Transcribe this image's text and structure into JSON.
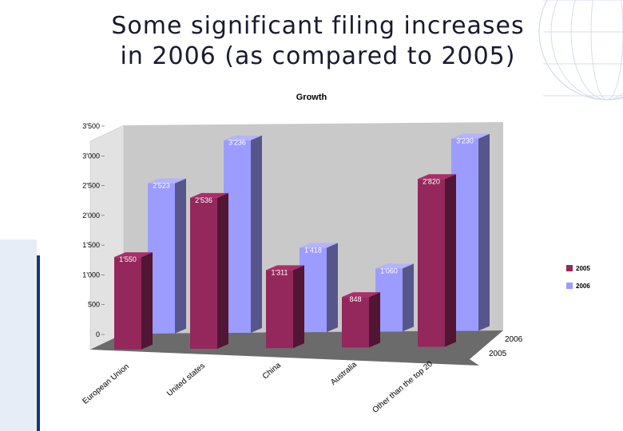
{
  "slide": {
    "title_line1": "Some significant filing increases",
    "title_line2": "in 2006 (as compared to 2005)"
  },
  "colors": {
    "series_2005": "#94285c",
    "series_2006": "#9c9cff",
    "back_wall": "#c9c9c9",
    "floor": "#6b6b6b",
    "left_accent": "#123a78"
  },
  "chart_data": {
    "type": "bar",
    "title": "Growth",
    "categories": [
      "European Union",
      "United states",
      "China",
      "Australia",
      "Other than the top 20"
    ],
    "series": [
      {
        "name": "2005",
        "values": [
          1550,
          2536,
          1311,
          848,
          2820
        ]
      },
      {
        "name": "2006",
        "values": [
          2523,
          3236,
          1418,
          1060,
          3230
        ]
      }
    ],
    "data_labels_2005": [
      "1'550",
      "2'536",
      "1'311",
      "848",
      "2'820"
    ],
    "data_labels_2006": [
      "2'523",
      "3'236",
      "1'418",
      "1'060",
      "3'230"
    ],
    "y_ticks": [
      0,
      500,
      1000,
      1500,
      2000,
      2500,
      3000,
      3500
    ],
    "y_tick_labels": [
      "0",
      "500",
      "1'000",
      "1'500",
      "2'000",
      "2'500",
      "3'000",
      "3'500"
    ],
    "depth_labels": [
      "2006",
      "2005"
    ],
    "ylim": [
      0,
      3500
    ],
    "legend_position": "right",
    "grid": false
  }
}
